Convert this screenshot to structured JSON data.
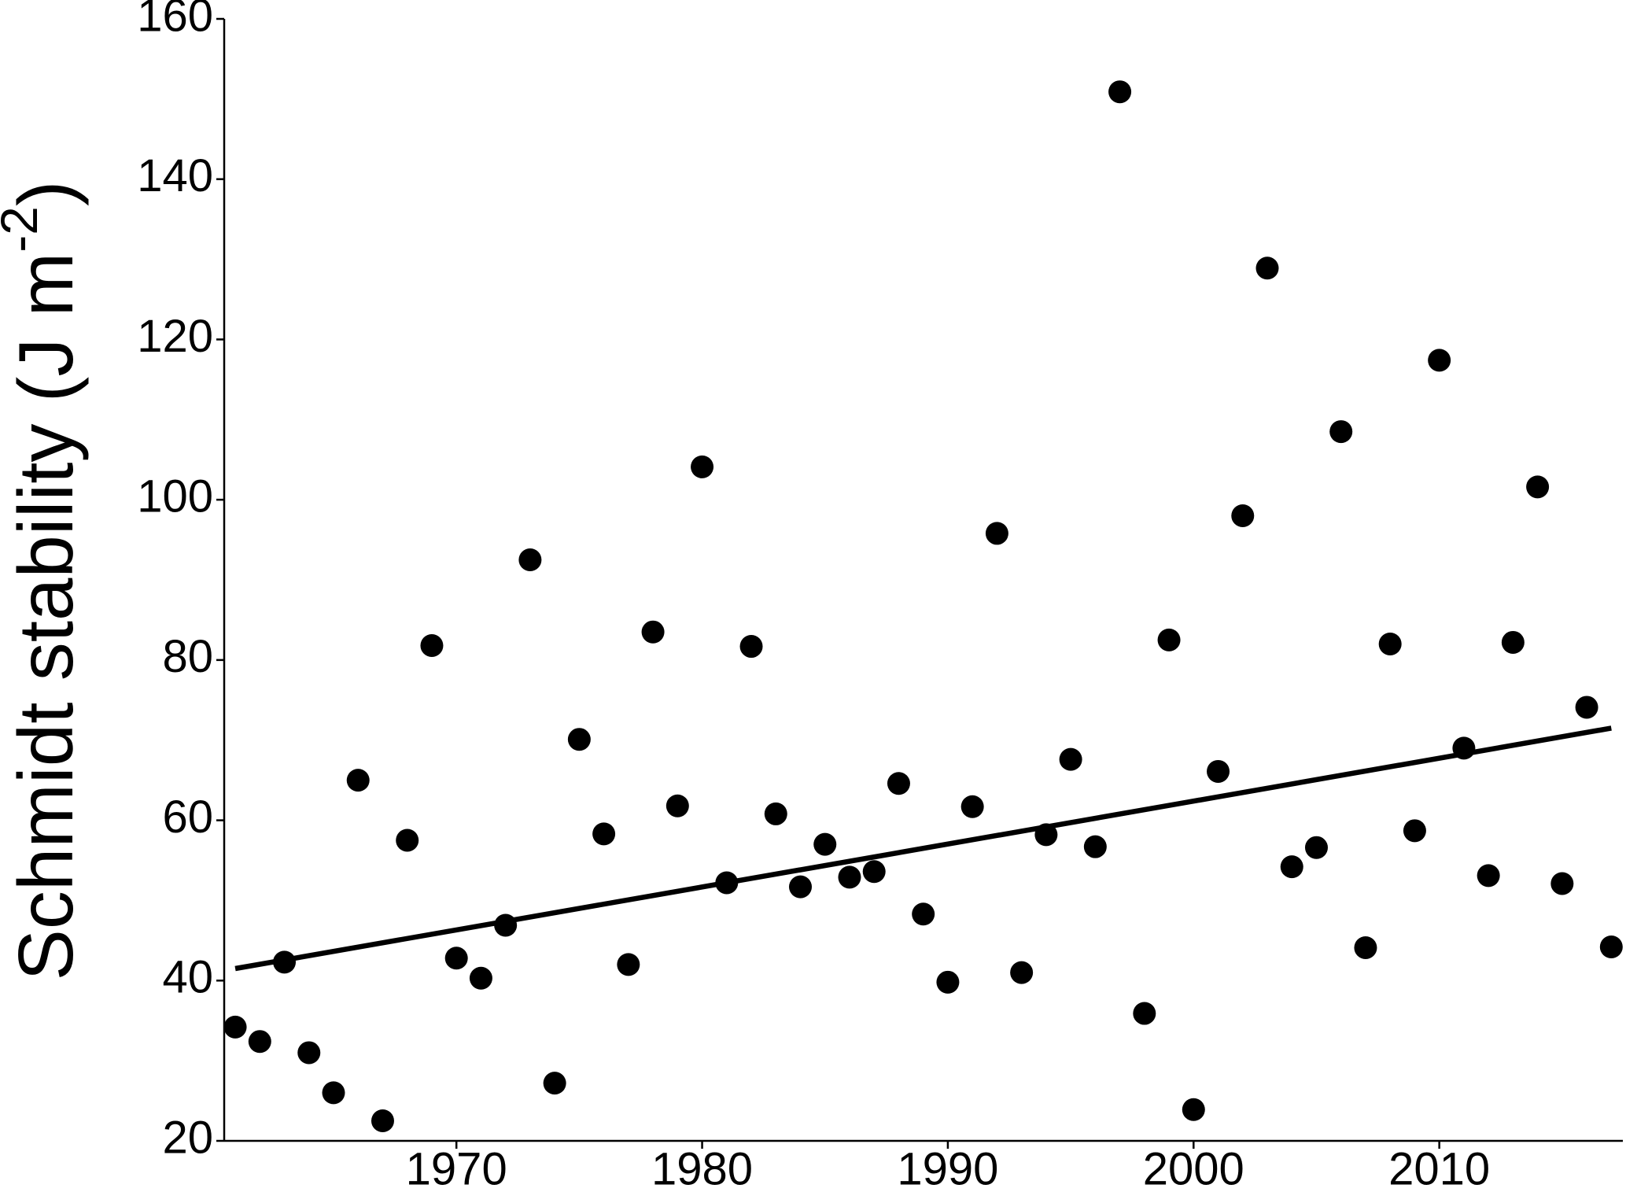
{
  "chart_data": {
    "type": "scatter",
    "ylabel": "Schmidt stability (J m",
    "ylabel_sup": "-2",
    "ylabel_end": ")",
    "x": [
      1961,
      1962,
      1963,
      1964,
      1965,
      1966,
      1967,
      1968,
      1969,
      1970,
      1971,
      1972,
      1973,
      1974,
      1975,
      1976,
      1977,
      1978,
      1979,
      1980,
      1981,
      1982,
      1983,
      1984,
      1985,
      1986,
      1987,
      1988,
      1989,
      1990,
      1991,
      1992,
      1993,
      1994,
      1995,
      1996,
      1997,
      1998,
      1999,
      2000,
      2001,
      2002,
      2003,
      2004,
      2005,
      2006,
      2007,
      2008,
      2009,
      2010,
      2011,
      2012,
      2013,
      2014,
      2015,
      2016,
      2017
    ],
    "values": [
      34.2,
      32.4,
      42.3,
      31.0,
      26.0,
      65.0,
      22.5,
      57.5,
      81.8,
      42.8,
      40.3,
      46.9,
      92.5,
      27.2,
      70.1,
      58.3,
      42.0,
      83.5,
      61.8,
      104.1,
      52.2,
      81.7,
      60.8,
      51.7,
      57.0,
      52.9,
      53.6,
      64.6,
      48.3,
      39.8,
      61.7,
      95.8,
      41.0,
      58.2,
      67.6,
      56.7,
      150.9,
      35.9,
      82.5,
      23.9,
      66.1,
      98.0,
      128.9,
      54.2,
      56.6,
      108.5,
      44.1,
      82.0,
      58.7,
      117.4,
      69.0,
      53.1,
      82.2,
      101.6,
      52.1,
      74.1,
      44.2
    ],
    "color": "#000000",
    "trend": {
      "x": [
        1961,
        2017
      ],
      "values": [
        41.5,
        71.5
      ]
    },
    "xlim": [
      1960.55,
      2017.47
    ],
    "xticks": [
      1970,
      1980,
      1990,
      2000,
      2010
    ],
    "ylim": [
      20,
      160
    ],
    "yticks": [
      20,
      40,
      60,
      80,
      100,
      120,
      140,
      160
    ],
    "grid": false
  }
}
